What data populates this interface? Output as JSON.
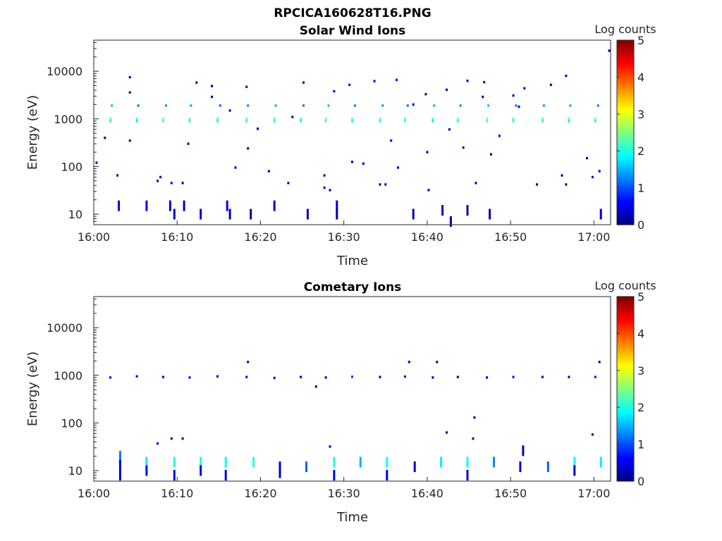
{
  "figure": {
    "title": "RPCICA160628T16.PNG"
  },
  "chart_data": [
    {
      "type": "heatmap",
      "title": "Solar Wind Ions",
      "xlabel": "Time",
      "ylabel": "Energy (eV)",
      "x_range": [
        "16:00",
        "17:02"
      ],
      "x_ticks": [
        "16:00",
        "16:10",
        "16:20",
        "16:30",
        "16:40",
        "16:50",
        "17:00"
      ],
      "y_scale": "log",
      "y_range": [
        6,
        45000
      ],
      "y_ticks": [
        "10",
        "100",
        "1000",
        "10000"
      ],
      "colorbar": {
        "label": "Log counts",
        "range": [
          0,
          5
        ],
        "ticks": [
          "0",
          "1",
          "2",
          "3",
          "4",
          "5"
        ],
        "colormap": "jet"
      },
      "points": [
        {
          "t": "16:02:00",
          "e": 900,
          "v": 2.0
        },
        {
          "t": "16:02:00",
          "e": 1000,
          "v": 2.4
        },
        {
          "t": "16:02:10",
          "e": 1900,
          "v": 1.6
        },
        {
          "t": "16:05:10",
          "e": 900,
          "v": 1.8
        },
        {
          "t": "16:05:10",
          "e": 1000,
          "v": 2.3
        },
        {
          "t": "16:05:20",
          "e": 1900,
          "v": 1.2
        },
        {
          "t": "16:08:20",
          "e": 900,
          "v": 2.2
        },
        {
          "t": "16:08:20",
          "e": 1000,
          "v": 2.6
        },
        {
          "t": "16:08:40",
          "e": 1900,
          "v": 1.4
        },
        {
          "t": "16:11:30",
          "e": 900,
          "v": 2.0
        },
        {
          "t": "16:11:30",
          "e": 1000,
          "v": 2.5
        },
        {
          "t": "16:11:40",
          "e": 1900,
          "v": 1.5
        },
        {
          "t": "16:14:50",
          "e": 900,
          "v": 1.9
        },
        {
          "t": "16:14:50",
          "e": 1000,
          "v": 2.3
        },
        {
          "t": "16:15:10",
          "e": 1900,
          "v": 1.1
        },
        {
          "t": "16:18:20",
          "e": 900,
          "v": 2.1
        },
        {
          "t": "16:18:20",
          "e": 1000,
          "v": 2.5
        },
        {
          "t": "16:18:30",
          "e": 1900,
          "v": 1.3
        },
        {
          "t": "16:21:40",
          "e": 900,
          "v": 2.0
        },
        {
          "t": "16:21:40",
          "e": 1000,
          "v": 2.4
        },
        {
          "t": "16:21:50",
          "e": 1900,
          "v": 1.5
        },
        {
          "t": "16:24:50",
          "e": 900,
          "v": 1.8
        },
        {
          "t": "16:24:50",
          "e": 1000,
          "v": 2.3
        },
        {
          "t": "16:25:10",
          "e": 1900,
          "v": 1.2
        },
        {
          "t": "16:27:50",
          "e": 900,
          "v": 2.2
        },
        {
          "t": "16:27:50",
          "e": 1000,
          "v": 2.6
        },
        {
          "t": "16:28:10",
          "e": 1900,
          "v": 1.6
        },
        {
          "t": "16:31:00",
          "e": 900,
          "v": 1.9
        },
        {
          "t": "16:31:00",
          "e": 1000,
          "v": 2.4
        },
        {
          "t": "16:31:20",
          "e": 1900,
          "v": 1.3
        },
        {
          "t": "16:34:20",
          "e": 900,
          "v": 2.0
        },
        {
          "t": "16:34:20",
          "e": 1000,
          "v": 2.5
        },
        {
          "t": "16:34:40",
          "e": 1900,
          "v": 1.4
        },
        {
          "t": "16:37:20",
          "e": 900,
          "v": 2.1
        },
        {
          "t": "16:37:20",
          "e": 1000,
          "v": 2.4
        },
        {
          "t": "16:37:40",
          "e": 1900,
          "v": 1.2
        },
        {
          "t": "16:40:40",
          "e": 900,
          "v": 1.8
        },
        {
          "t": "16:40:40",
          "e": 1000,
          "v": 2.3
        },
        {
          "t": "16:40:50",
          "e": 1900,
          "v": 1.5
        },
        {
          "t": "16:43:40",
          "e": 900,
          "v": 2.0
        },
        {
          "t": "16:43:40",
          "e": 1000,
          "v": 2.5
        },
        {
          "t": "16:44:00",
          "e": 1900,
          "v": 1.3
        },
        {
          "t": "16:47:10",
          "e": 900,
          "v": 2.2
        },
        {
          "t": "16:47:10",
          "e": 1000,
          "v": 2.6
        },
        {
          "t": "16:47:20",
          "e": 1900,
          "v": 1.6
        },
        {
          "t": "16:50:20",
          "e": 900,
          "v": 1.9
        },
        {
          "t": "16:50:20",
          "e": 1000,
          "v": 2.3
        },
        {
          "t": "16:50:40",
          "e": 1900,
          "v": 1.2
        },
        {
          "t": "16:53:50",
          "e": 900,
          "v": 2.0
        },
        {
          "t": "16:53:50",
          "e": 1000,
          "v": 2.4
        },
        {
          "t": "16:54:00",
          "e": 1900,
          "v": 1.4
        },
        {
          "t": "16:57:00",
          "e": 900,
          "v": 1.8
        },
        {
          "t": "16:57:00",
          "e": 1000,
          "v": 2.5
        },
        {
          "t": "16:57:10",
          "e": 1900,
          "v": 1.5
        },
        {
          "t": "17:00:10",
          "e": 900,
          "v": 2.1
        },
        {
          "t": "17:00:10",
          "e": 1000,
          "v": 2.4
        },
        {
          "t": "17:00:30",
          "e": 1900,
          "v": 1.3
        },
        {
          "t": "16:03:00",
          "e": 15,
          "v": 0.5
        },
        {
          "t": "16:06:20",
          "e": 15,
          "v": 0.6
        },
        {
          "t": "16:09:10",
          "e": 15,
          "v": 0.4
        },
        {
          "t": "16:09:40",
          "e": 10,
          "v": 0.3
        },
        {
          "t": "16:10:50",
          "e": 15,
          "v": 0.4
        },
        {
          "t": "16:12:50",
          "e": 10,
          "v": 0.3
        },
        {
          "t": "16:16:00",
          "e": 15,
          "v": 0.6
        },
        {
          "t": "16:16:20",
          "e": 10,
          "v": 0.3
        },
        {
          "t": "16:18:50",
          "e": 10,
          "v": 0.2
        },
        {
          "t": "16:21:40",
          "e": 15,
          "v": 0.4
        },
        {
          "t": "16:25:40",
          "e": 10,
          "v": 0.3
        },
        {
          "t": "16:29:10",
          "e": 10,
          "v": 0.2
        },
        {
          "t": "16:29:10",
          "e": 15,
          "v": 0.4
        },
        {
          "t": "16:38:20",
          "e": 10,
          "v": 0.3
        },
        {
          "t": "16:41:50",
          "e": 12,
          "v": 0.3
        },
        {
          "t": "16:42:50",
          "e": 7,
          "v": 0.2
        },
        {
          "t": "16:44:50",
          "e": 12,
          "v": 0.2
        },
        {
          "t": "16:47:30",
          "e": 10,
          "v": 0.3
        },
        {
          "t": "17:00:50",
          "e": 10,
          "v": 0.3
        },
        {
          "t": "16:00:20",
          "e": 120,
          "v": 0.3
        },
        {
          "t": "16:01:20",
          "e": 400,
          "v": 0.3
        },
        {
          "t": "16:02:50",
          "e": 65,
          "v": 0.4
        },
        {
          "t": "16:04:20",
          "e": 7500,
          "v": 0.4
        },
        {
          "t": "16:04:20",
          "e": 3600,
          "v": 0.3
        },
        {
          "t": "16:04:20",
          "e": 350,
          "v": 0.3
        },
        {
          "t": "16:07:40",
          "e": 50,
          "v": 0.3
        },
        {
          "t": "16:08:00",
          "e": 60,
          "v": 0.3
        },
        {
          "t": "16:09:20",
          "e": 45,
          "v": 0.4
        },
        {
          "t": "16:10:40",
          "e": 45,
          "v": 0.3
        },
        {
          "t": "16:11:20",
          "e": 300,
          "v": 0.3
        },
        {
          "t": "16:12:20",
          "e": 5800,
          "v": 0.4
        },
        {
          "t": "16:14:10",
          "e": 4900,
          "v": 0.3
        },
        {
          "t": "16:14:10",
          "e": 2900,
          "v": 0.3
        },
        {
          "t": "16:16:20",
          "e": 1500,
          "v": 0.5
        },
        {
          "t": "16:17:00",
          "e": 95,
          "v": 0.3
        },
        {
          "t": "16:18:20",
          "e": 4700,
          "v": 0.4
        },
        {
          "t": "16:18:30",
          "e": 240,
          "v": 0.3
        },
        {
          "t": "16:19:40",
          "e": 620,
          "v": 0.3
        },
        {
          "t": "16:21:00",
          "e": 80,
          "v": 0.4
        },
        {
          "t": "16:23:20",
          "e": 45,
          "v": 0.3
        },
        {
          "t": "16:23:50",
          "e": 1100,
          "v": 0.4
        },
        {
          "t": "16:25:10",
          "e": 5800,
          "v": 0.4
        },
        {
          "t": "16:27:40",
          "e": 65,
          "v": 0.3
        },
        {
          "t": "16:27:40",
          "e": 36,
          "v": 0.4
        },
        {
          "t": "16:28:20",
          "e": 32,
          "v": 0.4
        },
        {
          "t": "16:28:50",
          "e": 3800,
          "v": 0.4
        },
        {
          "t": "16:30:40",
          "e": 5200,
          "v": 0.5
        },
        {
          "t": "16:31:00",
          "e": 125,
          "v": 0.3
        },
        {
          "t": "16:32:20",
          "e": 115,
          "v": 0.3
        },
        {
          "t": "16:33:40",
          "e": 6200,
          "v": 0.4
        },
        {
          "t": "16:34:20",
          "e": 42,
          "v": 0.3
        },
        {
          "t": "16:35:00",
          "e": 42,
          "v": 0.3
        },
        {
          "t": "16:35:40",
          "e": 350,
          "v": 0.3
        },
        {
          "t": "16:36:30",
          "e": 95,
          "v": 0.4
        },
        {
          "t": "16:36:20",
          "e": 6600,
          "v": 0.5
        },
        {
          "t": "16:38:20",
          "e": 2000,
          "v": 0.5
        },
        {
          "t": "16:39:50",
          "e": 3300,
          "v": 0.3
        },
        {
          "t": "16:40:00",
          "e": 200,
          "v": 0.3
        },
        {
          "t": "16:40:10",
          "e": 32,
          "v": 0.3
        },
        {
          "t": "16:42:20",
          "e": 4100,
          "v": 0.3
        },
        {
          "t": "16:42:40",
          "e": 600,
          "v": 0.3
        },
        {
          "t": "16:44:20",
          "e": 250,
          "v": 0.3
        },
        {
          "t": "16:44:50",
          "e": 6300,
          "v": 0.3
        },
        {
          "t": "16:45:50",
          "e": 45,
          "v": 0.3
        },
        {
          "t": "16:46:50",
          "e": 5900,
          "v": 0.4
        },
        {
          "t": "16:46:40",
          "e": 2900,
          "v": 0.3
        },
        {
          "t": "16:47:40",
          "e": 180,
          "v": 0.3
        },
        {
          "t": "16:48:40",
          "e": 440,
          "v": 0.4
        },
        {
          "t": "16:50:20",
          "e": 3100,
          "v": 0.3
        },
        {
          "t": "16:51:40",
          "e": 4400,
          "v": 0.3
        },
        {
          "t": "16:51:00",
          "e": 1800,
          "v": 0.4
        },
        {
          "t": "16:53:10",
          "e": 42,
          "v": 0.3
        },
        {
          "t": "16:54:50",
          "e": 5200,
          "v": 0.4
        },
        {
          "t": "16:56:10",
          "e": 65,
          "v": 0.3
        },
        {
          "t": "16:56:40",
          "e": 8000,
          "v": 0.3
        },
        {
          "t": "16:56:40",
          "e": 42,
          "v": 0.3
        },
        {
          "t": "16:59:10",
          "e": 150,
          "v": 0.3
        },
        {
          "t": "16:59:50",
          "e": 60,
          "v": 0.3
        },
        {
          "t": "17:00:40",
          "e": 80,
          "v": 0.4
        },
        {
          "t": "17:01:50",
          "e": 27000,
          "v": 0.3
        }
      ]
    },
    {
      "type": "heatmap",
      "title": "Cometary Ions",
      "xlabel": "Time",
      "ylabel": "Energy (eV)",
      "x_range": [
        "16:00",
        "17:02"
      ],
      "x_ticks": [
        "16:00",
        "16:10",
        "16:20",
        "16:30",
        "16:40",
        "16:50",
        "17:00"
      ],
      "y_scale": "log",
      "y_range": [
        6,
        45000
      ],
      "y_ticks": [
        "10",
        "100",
        "1000",
        "10000"
      ],
      "colorbar": {
        "label": "Log counts",
        "range": [
          0,
          5
        ],
        "ticks": [
          "0",
          "1",
          "2",
          "3",
          "4",
          "5"
        ],
        "colormap": "jet"
      },
      "points": [
        {
          "t": "16:03:10",
          "e": 20,
          "v": 1.2
        },
        {
          "t": "16:03:10",
          "e": 13,
          "v": 0.5
        },
        {
          "t": "16:03:10",
          "e": 8,
          "v": 0.4
        },
        {
          "t": "16:06:20",
          "e": 15,
          "v": 1.8
        },
        {
          "t": "16:06:20",
          "e": 10,
          "v": 0.6
        },
        {
          "t": "16:09:40",
          "e": 15,
          "v": 2.0
        },
        {
          "t": "16:09:40",
          "e": 8,
          "v": 0.5
        },
        {
          "t": "16:12:50",
          "e": 15,
          "v": 2.0
        },
        {
          "t": "16:12:50",
          "e": 10,
          "v": 0.4
        },
        {
          "t": "16:15:50",
          "e": 15,
          "v": 1.9
        },
        {
          "t": "16:15:50",
          "e": 8,
          "v": 0.5
        },
        {
          "t": "16:19:10",
          "e": 15,
          "v": 2.0
        },
        {
          "t": "16:22:20",
          "e": 12,
          "v": 0.6
        },
        {
          "t": "16:22:20",
          "e": 9,
          "v": 0.3
        },
        {
          "t": "16:25:30",
          "e": 12,
          "v": 1.1
        },
        {
          "t": "16:28:50",
          "e": 15,
          "v": 2.0
        },
        {
          "t": "16:28:50",
          "e": 8,
          "v": 0.5
        },
        {
          "t": "16:32:00",
          "e": 15,
          "v": 1.5
        },
        {
          "t": "16:35:10",
          "e": 15,
          "v": 1.9
        },
        {
          "t": "16:35:10",
          "e": 8,
          "v": 0.5
        },
        {
          "t": "16:38:30",
          "e": 12,
          "v": 0.4
        },
        {
          "t": "16:41:40",
          "e": 15,
          "v": 1.8
        },
        {
          "t": "16:44:50",
          "e": 15,
          "v": 1.9
        },
        {
          "t": "16:44:50",
          "e": 8,
          "v": 0.5
        },
        {
          "t": "16:48:00",
          "e": 15,
          "v": 1.3
        },
        {
          "t": "16:51:10",
          "e": 12,
          "v": 0.5
        },
        {
          "t": "16:54:30",
          "e": 12,
          "v": 1.1
        },
        {
          "t": "16:57:40",
          "e": 15,
          "v": 1.9
        },
        {
          "t": "16:57:40",
          "e": 10,
          "v": 0.4
        },
        {
          "t": "17:00:50",
          "e": 15,
          "v": 1.8
        },
        {
          "t": "16:02:00",
          "e": 900,
          "v": 0.6
        },
        {
          "t": "16:05:10",
          "e": 950,
          "v": 0.5
        },
        {
          "t": "16:08:20",
          "e": 920,
          "v": 0.6
        },
        {
          "t": "16:11:30",
          "e": 900,
          "v": 0.5
        },
        {
          "t": "16:14:50",
          "e": 950,
          "v": 0.4
        },
        {
          "t": "16:18:20",
          "e": 920,
          "v": 0.5
        },
        {
          "t": "16:21:40",
          "e": 880,
          "v": 0.5
        },
        {
          "t": "16:24:50",
          "e": 920,
          "v": 0.4
        },
        {
          "t": "16:27:50",
          "e": 900,
          "v": 0.5
        },
        {
          "t": "16:31:00",
          "e": 930,
          "v": 0.9
        },
        {
          "t": "16:34:20",
          "e": 920,
          "v": 0.5
        },
        {
          "t": "16:37:20",
          "e": 940,
          "v": 0.6
        },
        {
          "t": "16:40:40",
          "e": 900,
          "v": 0.5
        },
        {
          "t": "16:43:40",
          "e": 920,
          "v": 0.4
        },
        {
          "t": "16:47:10",
          "e": 900,
          "v": 0.6
        },
        {
          "t": "16:50:20",
          "e": 920,
          "v": 0.7
        },
        {
          "t": "16:53:50",
          "e": 920,
          "v": 0.5
        },
        {
          "t": "16:57:00",
          "e": 920,
          "v": 0.6
        },
        {
          "t": "17:00:10",
          "e": 920,
          "v": 0.7
        },
        {
          "t": "16:18:30",
          "e": 1900,
          "v": 0.4
        },
        {
          "t": "16:26:40",
          "e": 580,
          "v": 0.3
        },
        {
          "t": "16:37:50",
          "e": 1900,
          "v": 0.4
        },
        {
          "t": "16:41:10",
          "e": 1900,
          "v": 0.4
        },
        {
          "t": "16:07:40",
          "e": 37,
          "v": 0.4
        },
        {
          "t": "16:09:20",
          "e": 47,
          "v": 0.3
        },
        {
          "t": "16:10:40",
          "e": 47,
          "v": 0.3
        },
        {
          "t": "16:28:20",
          "e": 32,
          "v": 0.5
        },
        {
          "t": "16:42:20",
          "e": 63,
          "v": 0.3
        },
        {
          "t": "16:45:40",
          "e": 130,
          "v": 0.3
        },
        {
          "t": "16:45:30",
          "e": 47,
          "v": 0.3
        },
        {
          "t": "16:51:30",
          "e": 26,
          "v": 0.3
        },
        {
          "t": "16:59:50",
          "e": 57,
          "v": 0.3
        },
        {
          "t": "17:00:40",
          "e": 1900,
          "v": 0.4
        }
      ]
    }
  ]
}
